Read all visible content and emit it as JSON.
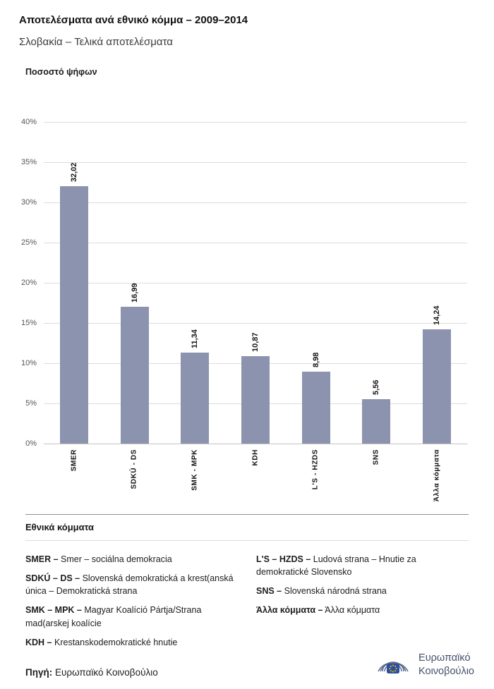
{
  "header": {
    "title": "Αποτελέσματα ανά εθνικό κόμμα – 2009–2014",
    "subtitle": "Σλοβακία – Τελικά αποτελέσματα"
  },
  "chart_data": {
    "type": "bar",
    "title": "Ποσοστό ψήφων",
    "categories": [
      "SMER",
      "SDKÚ - DS",
      "SMK - MPK",
      "KDH",
      "L'S - HZDS",
      "SNS",
      "Άλλα κόμματα"
    ],
    "values": [
      32.02,
      16.99,
      11.34,
      10.87,
      8.98,
      5.56,
      14.24
    ],
    "value_labels": [
      "32,02",
      "16,99",
      "11,34",
      "10,87",
      "8,98",
      "5,56",
      "14,24"
    ],
    "xlabel": "",
    "ylabel": "Ποσοστό ψήφων",
    "ylim": [
      0,
      40
    ],
    "ytick_step": 5,
    "ytick_labels": [
      "0%",
      "5%",
      "10%",
      "15%",
      "20%",
      "25%",
      "30%",
      "35%",
      "40%"
    ],
    "bar_color": "#8c93ae",
    "grid": true,
    "legend_position": "none"
  },
  "legend": {
    "heading": "Εθνικά κόμματα",
    "columns": [
      [
        {
          "term": "SMER –",
          "definition": "Smer – sociálna demokracia"
        },
        {
          "term": "SDKÚ – DS –",
          "definition": "Slovenská demokratická a krest(anská única – Demokratická strana"
        },
        {
          "term": "SMK – MPK –",
          "definition": "Magyar Koalíció Pártja/Strana mad(arskej koalície"
        },
        {
          "term": "KDH –",
          "definition": "Krestanskodemokratické hnutie"
        }
      ],
      [
        {
          "term": "L'S – HZDS –",
          "definition": "Ludová strana – Hnutie za demokratické Slovensko"
        },
        {
          "term": "SNS –",
          "definition": "Slovenská národná strana"
        },
        {
          "term": "Άλλα κόμματα –",
          "definition": "Άλλα κόμματα"
        }
      ]
    ]
  },
  "footer": {
    "source_label": "Πηγή:",
    "source_value": "Ευρωπαϊκό Κοινοβούλιο",
    "logo_line1": "Ευρωπαϊκό",
    "logo_line2": "Κοινοβούλιο"
  }
}
